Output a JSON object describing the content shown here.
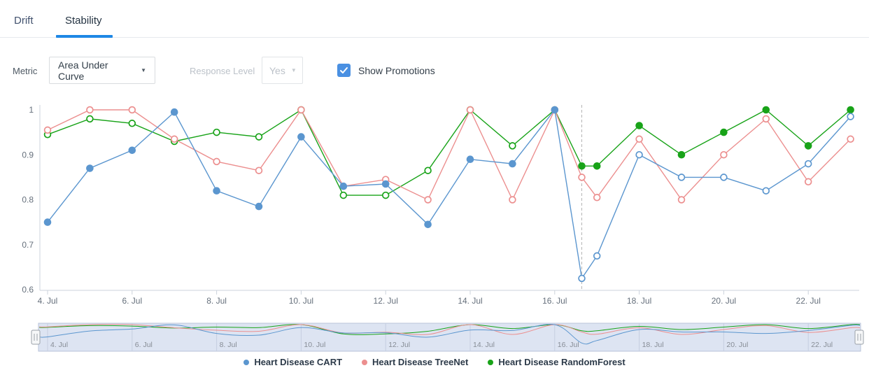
{
  "tabs": {
    "items": [
      {
        "label": "Drift",
        "active": false
      },
      {
        "label": "Stability",
        "active": true
      }
    ],
    "active_underline_color": "#1e87e5"
  },
  "controls": {
    "metric_label": "Metric",
    "metric_value": "Area Under Curve",
    "response_level_label": "Response Level",
    "response_level_value": "Yes",
    "response_level_disabled": true,
    "show_promotions_label": "Show Promotions",
    "show_promotions_checked": true,
    "checkbox_color": "#4a90e2"
  },
  "chart_data": {
    "type": "line",
    "title": "",
    "xlabel": "",
    "ylabel": "",
    "x_unit": "date in July",
    "ylim": [
      0.6,
      1.0
    ],
    "y_ticks": [
      1,
      0.9,
      0.8,
      0.7,
      0.6
    ],
    "y_tick_labels": [
      "1",
      "0.9",
      "0.8",
      "0.7",
      "0.6"
    ],
    "x_tick_days": [
      4,
      6,
      8,
      10,
      12,
      14,
      16,
      18,
      20,
      22
    ],
    "x_tick_labels": [
      "4. Jul",
      "6. Jul",
      "8. Jul",
      "10. Jul",
      "12. Jul",
      "14. Jul",
      "16. Jul",
      "18. Jul",
      "20. Jul",
      "22. Jul"
    ],
    "x_days": [
      4,
      5,
      6,
      7,
      8,
      9,
      10,
      11,
      12,
      13,
      14,
      15,
      16,
      16.64,
      17,
      18,
      19,
      20,
      21,
      22,
      23
    ],
    "promotion_line": {
      "x_day": 16.64,
      "style": "dashed",
      "color": "#b3b3b3"
    },
    "grid": false,
    "legend_position": "bottom",
    "series": [
      {
        "name": "Heart Disease CART",
        "color": "#5b96cf",
        "values": [
          0.75,
          0.87,
          0.91,
          0.995,
          0.82,
          0.785,
          0.94,
          0.83,
          0.835,
          0.745,
          0.89,
          0.88,
          1.0,
          0.625,
          0.675,
          0.9,
          0.85,
          0.85,
          0.82,
          0.88,
          0.985
        ],
        "marker_filled": [
          true,
          true,
          true,
          true,
          true,
          true,
          true,
          true,
          true,
          true,
          true,
          true,
          true,
          false,
          false,
          false,
          false,
          false,
          false,
          false,
          false
        ]
      },
      {
        "name": "Heart Disease TreeNet",
        "color": "#ec8f8f",
        "values": [
          0.955,
          1.0,
          1.0,
          0.935,
          0.885,
          0.865,
          1.0,
          0.83,
          0.845,
          0.8,
          1.0,
          0.8,
          1.0,
          0.85,
          0.805,
          0.935,
          0.8,
          0.9,
          0.98,
          0.84,
          0.935
        ],
        "marker_filled": [
          false,
          false,
          false,
          false,
          false,
          false,
          false,
          false,
          false,
          false,
          false,
          false,
          false,
          false,
          false,
          false,
          false,
          false,
          false,
          false,
          false
        ]
      },
      {
        "name": "Heart Disease RandomForest",
        "color": "#18a318",
        "values": [
          0.945,
          0.98,
          0.97,
          0.93,
          0.95,
          0.94,
          1.0,
          0.81,
          0.81,
          0.865,
          1.0,
          0.92,
          1.0,
          0.875,
          0.875,
          0.965,
          0.9,
          0.95,
          1.0,
          0.92,
          1.0
        ],
        "marker_filled": [
          false,
          false,
          false,
          false,
          false,
          false,
          false,
          false,
          false,
          false,
          false,
          false,
          false,
          true,
          true,
          true,
          true,
          true,
          true,
          true,
          true
        ]
      }
    ]
  },
  "navigator": {
    "labels": [
      "4. Jul",
      "6. Jul",
      "8. Jul",
      "10. Jul",
      "12. Jul",
      "14. Jul",
      "16. Jul",
      "18. Jul",
      "20. Jul",
      "22. Jul"
    ],
    "mask_color": "#dde4f2"
  }
}
